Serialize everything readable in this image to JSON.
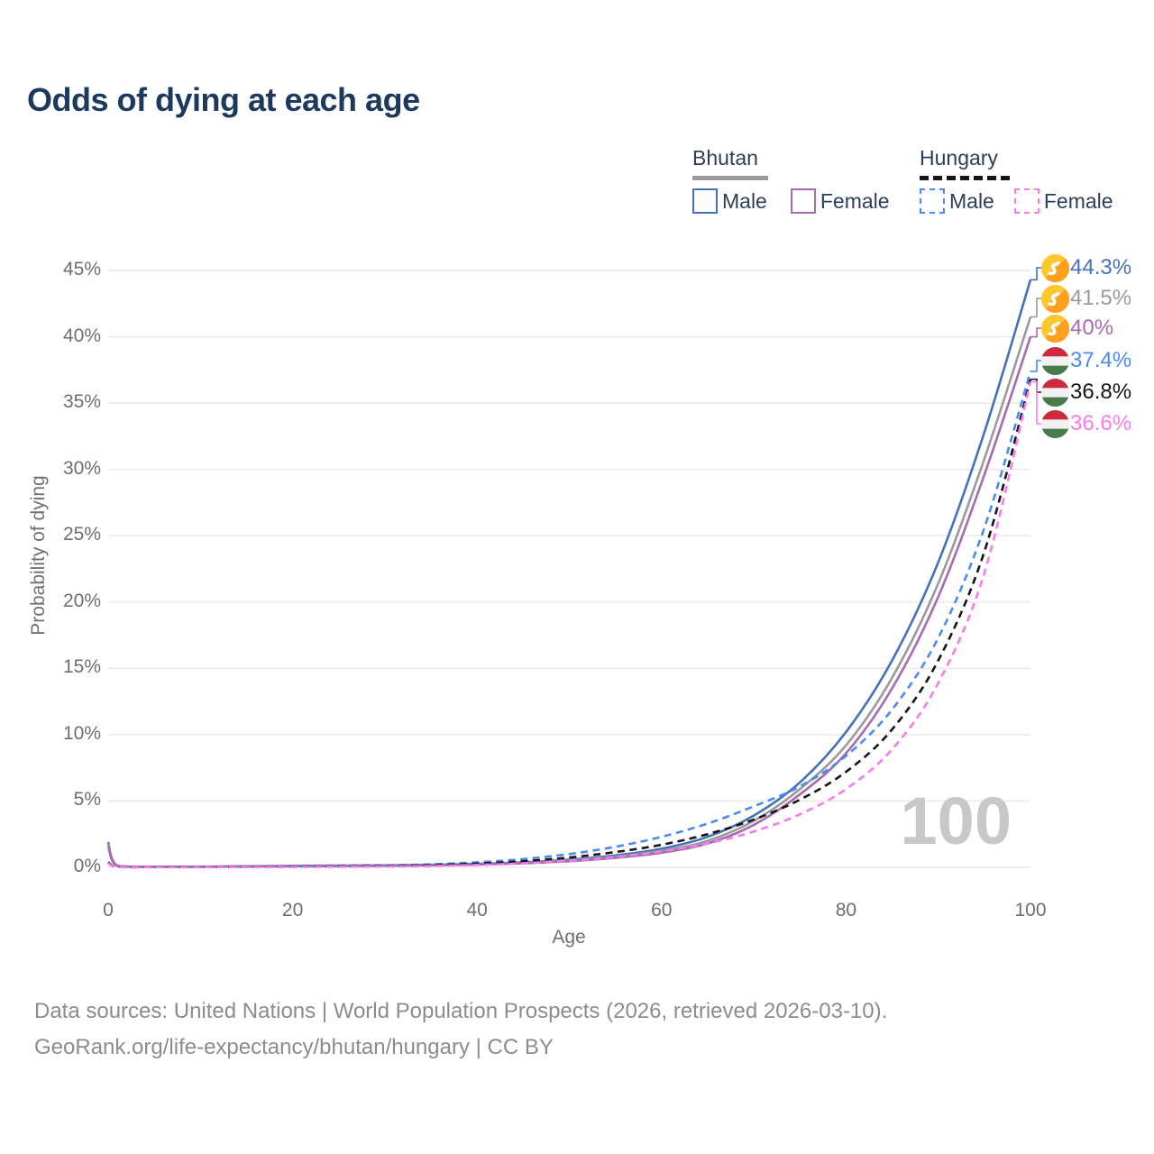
{
  "title": "Odds of dying at each age",
  "legend": {
    "bhutan": {
      "title": "Bhutan",
      "male_label": "Male",
      "female_label": "Female"
    },
    "hungary": {
      "title": "Hungary",
      "male_label": "Male",
      "female_label": "Female"
    }
  },
  "watermark": "100",
  "footer": {
    "line1": "Data sources: United Nations | World Population Prospects (2026, retrieved 2026-03-10).",
    "line2": "GeoRank.org/life-expectancy/bhutan/hungary | CC BY"
  },
  "chart_data": {
    "type": "line",
    "title": "Odds of dying at each age",
    "xlabel": "Age",
    "ylabel": "Probability of dying",
    "xlim": [
      0,
      100
    ],
    "ylim_percent": [
      0,
      45
    ],
    "grid": "horizontal",
    "x_ticks": [
      0,
      20,
      40,
      60,
      80,
      100
    ],
    "x_tick_labels": [
      "0",
      "20",
      "40",
      "60",
      "80",
      "100"
    ],
    "y_ticks": [
      0,
      5,
      10,
      15,
      20,
      25,
      30,
      35,
      40,
      45
    ],
    "y_tick_labels": [
      "0%",
      "5%",
      "10%",
      "15%",
      "20%",
      "25%",
      "30%",
      "35%",
      "40%",
      "45%"
    ],
    "legend_position": "top-right",
    "ages": [
      0,
      1,
      5,
      10,
      15,
      20,
      25,
      30,
      35,
      40,
      45,
      50,
      55,
      60,
      65,
      70,
      75,
      80,
      85,
      90,
      95,
      100
    ],
    "series": [
      {
        "name": "Bhutan Male",
        "country": "Bhutan",
        "sex": "Male",
        "color": "#4472b8",
        "dash": "solid",
        "flag": "bhutan",
        "end_label": "44.3%",
        "end_value": 44.3,
        "values": [
          1.9,
          0.12,
          0.05,
          0.05,
          0.08,
          0.11,
          0.13,
          0.15,
          0.19,
          0.26,
          0.38,
          0.58,
          0.9,
          1.4,
          2.3,
          3.9,
          6.4,
          10.2,
          15.6,
          23.0,
          32.8,
          44.3
        ]
      },
      {
        "name": "Bhutan",
        "country": "Bhutan",
        "sex": "Both",
        "color": "#9a9a9a",
        "dash": "solid",
        "flag": "bhutan",
        "end_label": "41.5%",
        "end_value": 41.5,
        "values": [
          1.75,
          0.11,
          0.05,
          0.04,
          0.07,
          0.09,
          0.11,
          0.13,
          0.17,
          0.23,
          0.34,
          0.52,
          0.8,
          1.25,
          2.0,
          3.5,
          5.9,
          9.2,
          14.3,
          21.4,
          30.8,
          41.5
        ]
      },
      {
        "name": "Bhutan Female",
        "country": "Bhutan",
        "sex": "Female",
        "color": "#a86ab0",
        "dash": "solid",
        "flag": "bhutan",
        "end_label": "40%",
        "end_value": 40,
        "values": [
          1.6,
          0.1,
          0.04,
          0.04,
          0.06,
          0.08,
          0.09,
          0.12,
          0.15,
          0.21,
          0.3,
          0.46,
          0.72,
          1.1,
          1.8,
          3.2,
          5.5,
          8.6,
          13.5,
          20.4,
          29.6,
          40.0
        ]
      },
      {
        "name": "Hungary Male",
        "country": "Hungary",
        "sex": "Male",
        "color": "#4a8bf1",
        "dash": "dashed",
        "flag": "hungary",
        "end_label": "37.4%",
        "end_value": 37.4,
        "values": [
          0.4,
          0.03,
          0.02,
          0.02,
          0.04,
          0.07,
          0.09,
          0.13,
          0.22,
          0.38,
          0.62,
          1.0,
          1.55,
          2.3,
          3.3,
          4.6,
          6.1,
          8.4,
          11.9,
          17.3,
          25.6,
          37.4
        ]
      },
      {
        "name": "Hungary",
        "country": "Hungary",
        "sex": "Both",
        "color": "#151515",
        "dash": "dashed",
        "flag": "hungary",
        "end_label": "36.8%",
        "end_value": 36.8,
        "values": [
          0.35,
          0.03,
          0.02,
          0.02,
          0.03,
          0.05,
          0.07,
          0.1,
          0.16,
          0.28,
          0.46,
          0.74,
          1.15,
          1.7,
          2.5,
          3.6,
          5.1,
          7.2,
          10.4,
          15.6,
          23.8,
          36.8
        ]
      },
      {
        "name": "Hungary Female",
        "country": "Hungary",
        "sex": "Female",
        "color": "#fa7bf0",
        "dash": "dashed",
        "flag": "hungary",
        "end_label": "36.6%",
        "end_value": 36.6,
        "values": [
          0.3,
          0.02,
          0.01,
          0.01,
          0.02,
          0.03,
          0.04,
          0.06,
          0.1,
          0.18,
          0.3,
          0.5,
          0.78,
          1.2,
          1.8,
          2.7,
          4.0,
          5.9,
          8.9,
          13.9,
          22.2,
          36.6
        ]
      }
    ],
    "flag_colors": {
      "bhutan_yellow": "#ffc72e",
      "bhutan_orange": "#ff9f1e",
      "hungary_red": "#cd2a3e",
      "hungary_white": "#f1f1f1",
      "hungary_green": "#477a4c"
    }
  }
}
